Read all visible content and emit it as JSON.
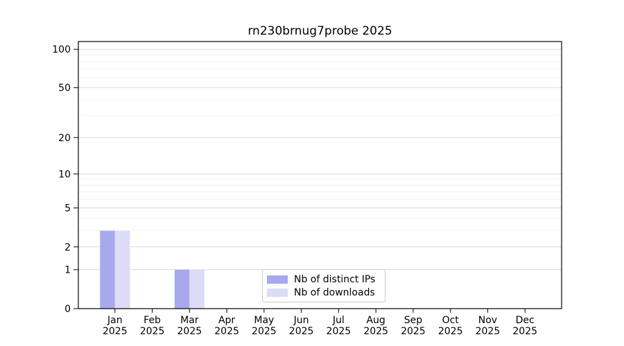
{
  "chart_data": {
    "type": "bar",
    "title": "rn230brnug7probe 2025",
    "months": [
      "Jan",
      "Feb",
      "Mar",
      "Apr",
      "May",
      "Jun",
      "Jul",
      "Aug",
      "Sep",
      "Oct",
      "Nov",
      "Dec"
    ],
    "year": "2025",
    "series": [
      {
        "name": "Nb of distinct IPs",
        "color": "#a8a8ee",
        "values": [
          3,
          0,
          1,
          0,
          0,
          0,
          0,
          0,
          0,
          0,
          0,
          0
        ]
      },
      {
        "name": "Nb of downloads",
        "color": "#dcdcf8",
        "values": [
          3,
          0,
          1,
          0,
          0,
          0,
          0,
          0,
          0,
          0,
          0,
          0
        ]
      }
    ],
    "yscale": "log1p",
    "ylim": [
      0,
      115
    ],
    "y_major_ticks": [
      0,
      1,
      2,
      5,
      10,
      20,
      50,
      100
    ],
    "y_minor_ticks": [
      3,
      4,
      6,
      7,
      8,
      9,
      30,
      40,
      60,
      70,
      80,
      90
    ],
    "xlabel": "",
    "ylabel": "",
    "grid": "horizontal",
    "legend_position": "lower center",
    "colors": {
      "grid_major": "#d9d9d9",
      "grid_minor": "#f0f0f0",
      "axis": "#000000",
      "legend_border": "#c9c9c9",
      "background": "#ffffff"
    }
  }
}
